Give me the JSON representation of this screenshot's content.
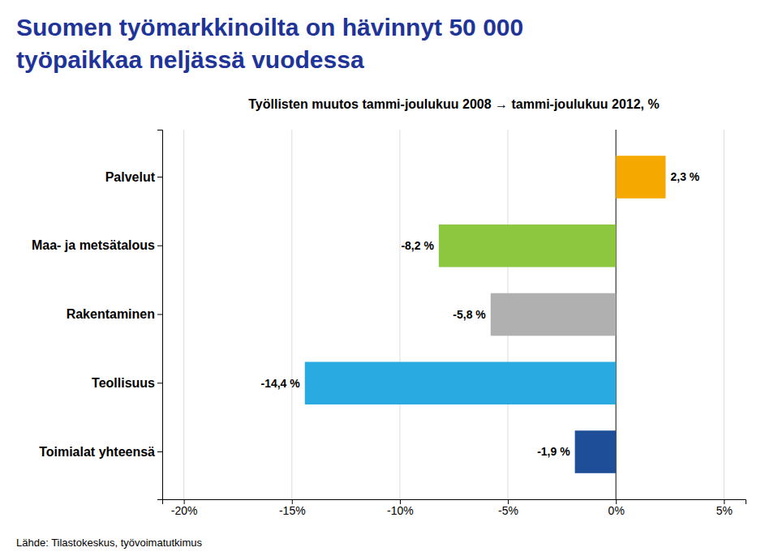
{
  "chart_data": {
    "type": "bar",
    "orientation": "horizontal",
    "title": [
      "Suomen työmarkkinoilta on hävinnyt 50 000",
      "työpaikkaa neljässä vuodessa"
    ],
    "subtitle": "Työllisten muutos tammi-joulukuu 2008 → tammi-joulukuu 2012, %",
    "annotations": [
      "Lähde: Tilastokeskus, työvoimatutkimus"
    ],
    "categories": [
      "Palvelut",
      "Maa- ja metsätalous",
      "Rakentaminen",
      "Teollisuus",
      "Toimialat yhteensä"
    ],
    "values": [
      2.3,
      -8.2,
      -5.8,
      -14.4,
      -1.9
    ],
    "value_labels": [
      "2,3 %",
      "-8,2 %",
      "-5,8 %",
      "-14,4 %",
      "-1,9 %"
    ],
    "colors": [
      "#f5a800",
      "#8dc63f",
      "#b0b0b0",
      "#29abe2",
      "#1f4e99"
    ],
    "xlim": [
      -21,
      6
    ],
    "xticks": [
      {
        "value": -20,
        "label": "-20%"
      },
      {
        "value": -15,
        "label": "-15%"
      },
      {
        "value": -10,
        "label": "-10%"
      },
      {
        "value": -5,
        "label": "-5%"
      },
      {
        "value": 0,
        "label": "0%"
      },
      {
        "value": 5,
        "label": "5%"
      }
    ],
    "grid": true,
    "data_labels": true
  }
}
